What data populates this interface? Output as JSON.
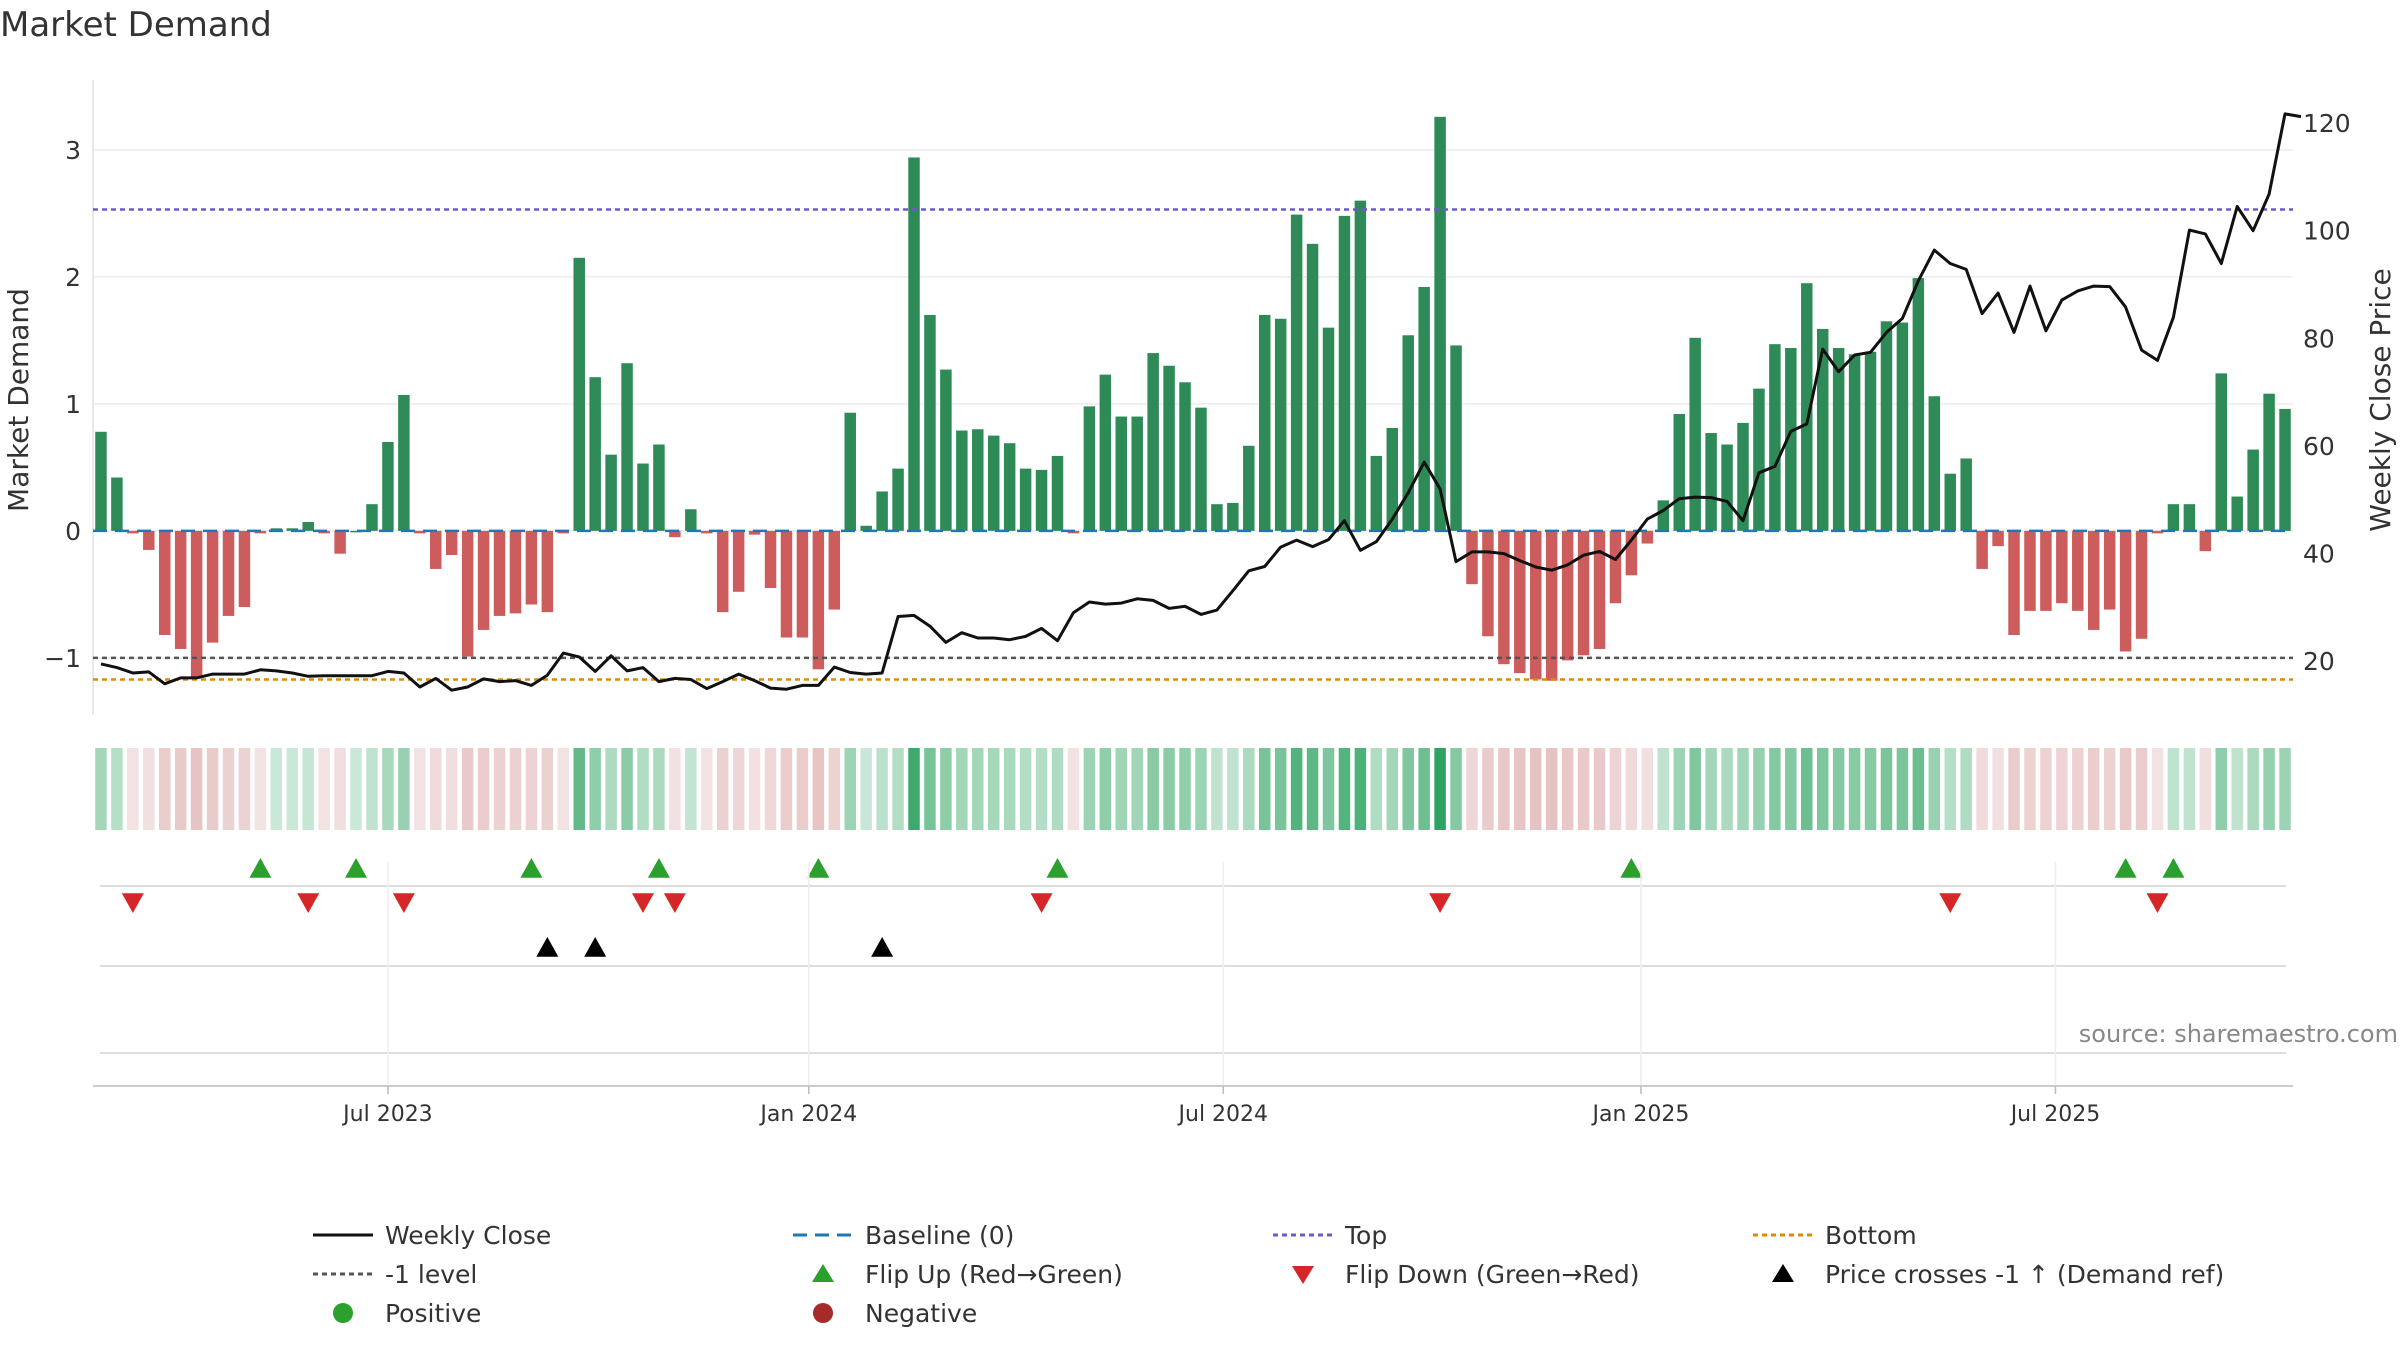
{
  "title": "Market Demand",
  "source_note": "source: sharemaestro.com",
  "chart_data": {
    "type": "bar",
    "title": "Market Demand",
    "ylabel": "Market Demand",
    "y2label": "Weekly Close Price",
    "ylim": [
      -1.45,
      3.55
    ],
    "y2lim": [
      10,
      128
    ],
    "yticks": [
      -1,
      0,
      1,
      2,
      3
    ],
    "y2ticks": [
      20,
      40,
      60,
      80,
      100,
      120
    ],
    "xticks": [
      {
        "label": "Jul 2023",
        "index": 18
      },
      {
        "label": "Jan 2024",
        "index": 44.4
      },
      {
        "label": "Jul 2024",
        "index": 70.4
      },
      {
        "label": "Jan 2025",
        "index": 96.6
      },
      {
        "label": "Jul 2025",
        "index": 122.6
      }
    ],
    "grid": true,
    "legend_position": "bottom",
    "top_level": 2.53,
    "bottom_level": -1.17,
    "minus_one_level": -1,
    "baseline": 0,
    "demand": [
      0.78,
      0.42,
      -0.02,
      -0.15,
      -0.82,
      -0.93,
      -1.15,
      -0.88,
      -0.67,
      -0.6,
      -0.02,
      0.02,
      0.02,
      0.07,
      -0.02,
      -0.18,
      0.0,
      0.21,
      0.7,
      1.07,
      -0.02,
      -0.3,
      -0.19,
      -0.99,
      -0.78,
      -0.67,
      -0.65,
      -0.58,
      -0.64,
      -0.02,
      2.15,
      1.21,
      0.6,
      1.32,
      0.53,
      0.68,
      -0.05,
      0.17,
      -0.02,
      -0.64,
      -0.48,
      -0.03,
      -0.45,
      -0.84,
      -0.84,
      -1.09,
      -0.62,
      0.93,
      0.04,
      0.31,
      0.49,
      2.94,
      1.7,
      1.27,
      0.79,
      0.8,
      0.75,
      0.69,
      0.49,
      0.48,
      0.59,
      -0.02,
      0.98,
      1.23,
      0.9,
      0.9,
      1.4,
      1.3,
      1.17,
      0.97,
      0.21,
      0.22,
      0.67,
      1.7,
      1.67,
      2.49,
      2.26,
      1.6,
      2.48,
      2.6,
      0.59,
      0.81,
      1.54,
      1.92,
      3.26,
      1.46,
      -0.42,
      -0.83,
      -1.05,
      -1.12,
      -1.17,
      -1.18,
      -1.02,
      -0.98,
      -0.93,
      -0.57,
      -0.35,
      -0.1,
      0.24,
      0.92,
      1.52,
      0.77,
      0.68,
      0.85,
      1.12,
      1.47,
      1.44,
      1.95,
      1.59,
      1.44,
      1.39,
      1.41,
      1.65,
      1.64,
      1.99,
      1.06,
      0.45,
      0.57,
      -0.3,
      -0.12,
      -0.82,
      -0.63,
      -0.63,
      -0.57,
      -0.63,
      -0.78,
      -0.62,
      -0.95,
      -0.85,
      -0.02,
      0.21,
      0.21,
      -0.16,
      1.24,
      0.27,
      0.64,
      1.08,
      0.96
    ],
    "weekly_close": [
      19.5,
      18.8,
      17.8,
      18.0,
      15.8,
      16.9,
      16.9,
      17.6,
      17.6,
      17.6,
      18.4,
      18.2,
      17.8,
      17.2,
      17.3,
      17.3,
      17.3,
      17.3,
      18.1,
      17.8,
      15.2,
      16.8,
      14.6,
      15.2,
      16.7,
      16.2,
      16.4,
      15.5,
      17.4,
      21.5,
      20.8,
      18.1,
      21.0,
      18.2,
      18.8,
      16.2,
      16.8,
      16.6,
      14.9,
      16.2,
      17.6,
      16.4,
      15.0,
      14.8,
      15.5,
      15.5,
      18.9,
      17.9,
      17.6,
      17.8,
      28.3,
      28.5,
      26.5,
      23.5,
      25.3,
      24.3,
      24.3,
      24.0,
      24.6,
      26.1,
      23.8,
      29.0,
      31.0,
      30.6,
      30.8,
      31.6,
      31.3,
      29.8,
      30.2,
      28.7,
      29.5,
      33.1,
      36.8,
      37.6,
      41.2,
      42.5,
      41.3,
      42.6,
      46.1,
      40.6,
      42.2,
      46.4,
      51.3,
      57.0,
      52.0,
      38.5,
      40.3,
      40.3,
      40.0,
      38.7,
      37.5,
      36.9,
      37.9,
      39.7,
      40.4,
      38.9,
      42.5,
      46.4,
      48.0,
      50.2,
      50.5,
      50.4,
      49.7,
      46.1,
      55.0,
      56.2,
      62.7,
      64.1,
      78.0,
      73.8,
      76.9,
      77.4,
      81.1,
      83.7,
      90.7,
      96.4,
      93.9,
      92.8,
      84.6,
      88.4,
      81.1,
      89.7,
      81.4,
      87.1,
      88.8,
      89.7,
      89.6,
      85.8,
      77.8,
      75.9,
      83.9,
      100.1,
      99.4,
      93.9,
      104.5,
      100.0,
      106.8,
      121.7,
      121.2
    ],
    "flip_up_indices": [
      10,
      16,
      27,
      35,
      45,
      60,
      96,
      127,
      130
    ],
    "flip_down_indices": [
      2,
      13,
      19,
      34,
      36,
      59,
      84,
      116,
      129
    ],
    "price_cross_indices": [
      28,
      31,
      49
    ],
    "legend": [
      {
        "label": "Weekly Close",
        "kind": "solid-line",
        "color": "#111111"
      },
      {
        "label": "Baseline (0)",
        "kind": "dashed-line",
        "color": "#1f77b4"
      },
      {
        "label": "Top",
        "kind": "dotted-line",
        "color": "#6a5acd"
      },
      {
        "label": "Bottom",
        "kind": "dotted-line",
        "color": "#e08a00"
      },
      {
        "label": "-1 level",
        "kind": "dotted-line",
        "color": "#555555"
      },
      {
        "label": "Flip Up (Red→Green)",
        "kind": "triangle-up",
        "color": "#2ca02c"
      },
      {
        "label": "Flip Down (Green→Red)",
        "kind": "triangle-down",
        "color": "#d62728"
      },
      {
        "label": "Price crosses -1 ↑ (Demand ref)",
        "kind": "triangle-up",
        "color": "#000000"
      },
      {
        "label": "Positive",
        "kind": "circle",
        "color": "#2ca02c"
      },
      {
        "label": "Negative",
        "kind": "circle",
        "color": "#a52a2a"
      }
    ],
    "colors": {
      "positive_bar": "#2e8b57",
      "negative_bar": "#cd5c5c",
      "price_line": "#111111",
      "baseline": "#1f77b4",
      "top": "#6a5acd",
      "bottom": "#e08a00",
      "minus_one": "#555555",
      "heat_positive": "#2ca25f",
      "heat_negative": "#d08c8c"
    }
  }
}
